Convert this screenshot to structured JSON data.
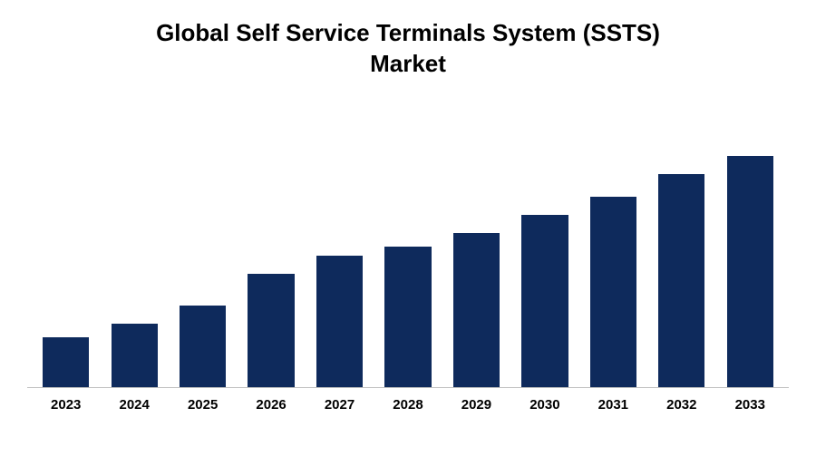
{
  "chart": {
    "type": "bar",
    "title_line1": "Global Self Service Terminals System (SSTS)",
    "title_line2": "Market",
    "title_fontsize": 26,
    "title_color": "#000000",
    "title_fontweight": 700,
    "categories": [
      "2023",
      "2024",
      "2025",
      "2026",
      "2027",
      "2028",
      "2029",
      "2030",
      "2031",
      "2032",
      "2033"
    ],
    "values": [
      55,
      70,
      90,
      125,
      145,
      155,
      170,
      190,
      210,
      235,
      255
    ],
    "ylim": [
      0,
      300
    ],
    "bar_color": "#0e2a5c",
    "background_color": "#ffffff",
    "axis_line_color": "#bfbfbf",
    "xlabel_fontsize": 15,
    "xlabel_fontweight": 700,
    "xlabel_color": "#000000",
    "bar_width": 0.68
  }
}
